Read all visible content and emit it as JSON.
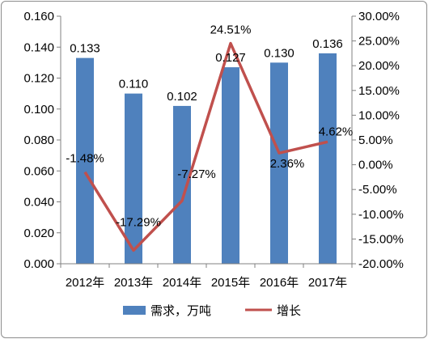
{
  "chart_data": {
    "type": "bar+line",
    "categories": [
      "2012年",
      "2013年",
      "2014年",
      "2015年",
      "2016年",
      "2017年"
    ],
    "series": [
      {
        "name": "需求，万吨",
        "type": "bar",
        "axis": "left",
        "values": [
          0.133,
          0.11,
          0.102,
          0.127,
          0.13,
          0.136
        ],
        "labels": [
          "0.133",
          "0.110",
          "0.102",
          "0.127",
          "0.130",
          "0.136"
        ],
        "color": "#4f81bd"
      },
      {
        "name": "增长",
        "type": "line",
        "axis": "right",
        "values": [
          -1.48,
          -17.29,
          -7.27,
          24.51,
          2.36,
          4.62
        ],
        "labels": [
          "-1.48%",
          "-17.29%",
          "-7.27%",
          "24.51%",
          "2.36%",
          "4.62%"
        ],
        "color": "#c0504d"
      }
    ],
    "y_left": {
      "lim": [
        0,
        0.16
      ],
      "ticks": [
        "0.000",
        "0.020",
        "0.040",
        "0.060",
        "0.080",
        "0.100",
        "0.120",
        "0.140",
        "0.160"
      ]
    },
    "y_right": {
      "lim": [
        -20,
        30
      ],
      "ticks": [
        "-20.00%",
        "-15.00%",
        "-10.00%",
        "-5.00%",
        "0.00%",
        "5.00%",
        "10.00%",
        "15.00%",
        "20.00%",
        "25.00%",
        "30.00%"
      ]
    },
    "grid": false,
    "legend_position": "bottom"
  }
}
